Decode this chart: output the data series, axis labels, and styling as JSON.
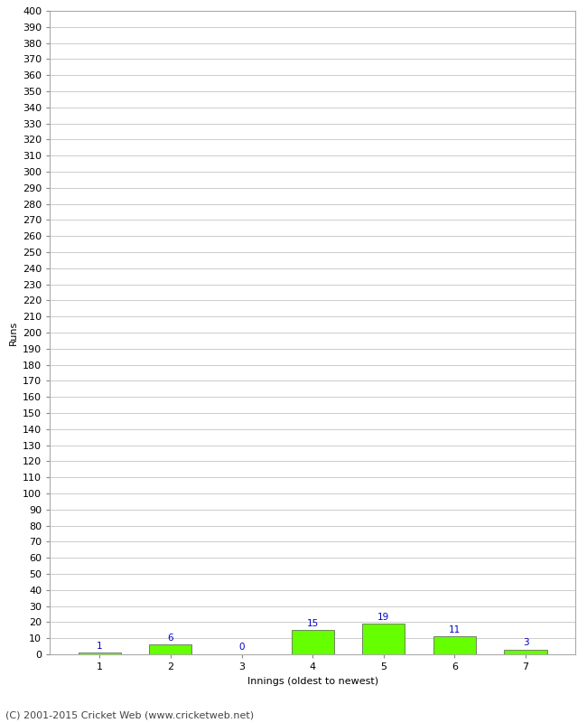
{
  "title": "",
  "categories": [
    "1",
    "2",
    "3",
    "4",
    "5",
    "6",
    "7"
  ],
  "values": [
    1,
    6,
    0,
    15,
    19,
    11,
    3
  ],
  "bar_color": "#66ff00",
  "bar_edge_color": "#555555",
  "label_color": "#0000cc",
  "xlabel": "Innings (oldest to newest)",
  "ylabel": "Runs",
  "ylim": [
    0,
    400
  ],
  "ytick_step": 10,
  "background_color": "#ffffff",
  "grid_color": "#cccccc",
  "footer": "(C) 2001-2015 Cricket Web (www.cricketweb.net)",
  "label_fontsize": 7.5,
  "axis_fontsize": 8,
  "ylabel_fontsize": 8,
  "footer_fontsize": 8
}
